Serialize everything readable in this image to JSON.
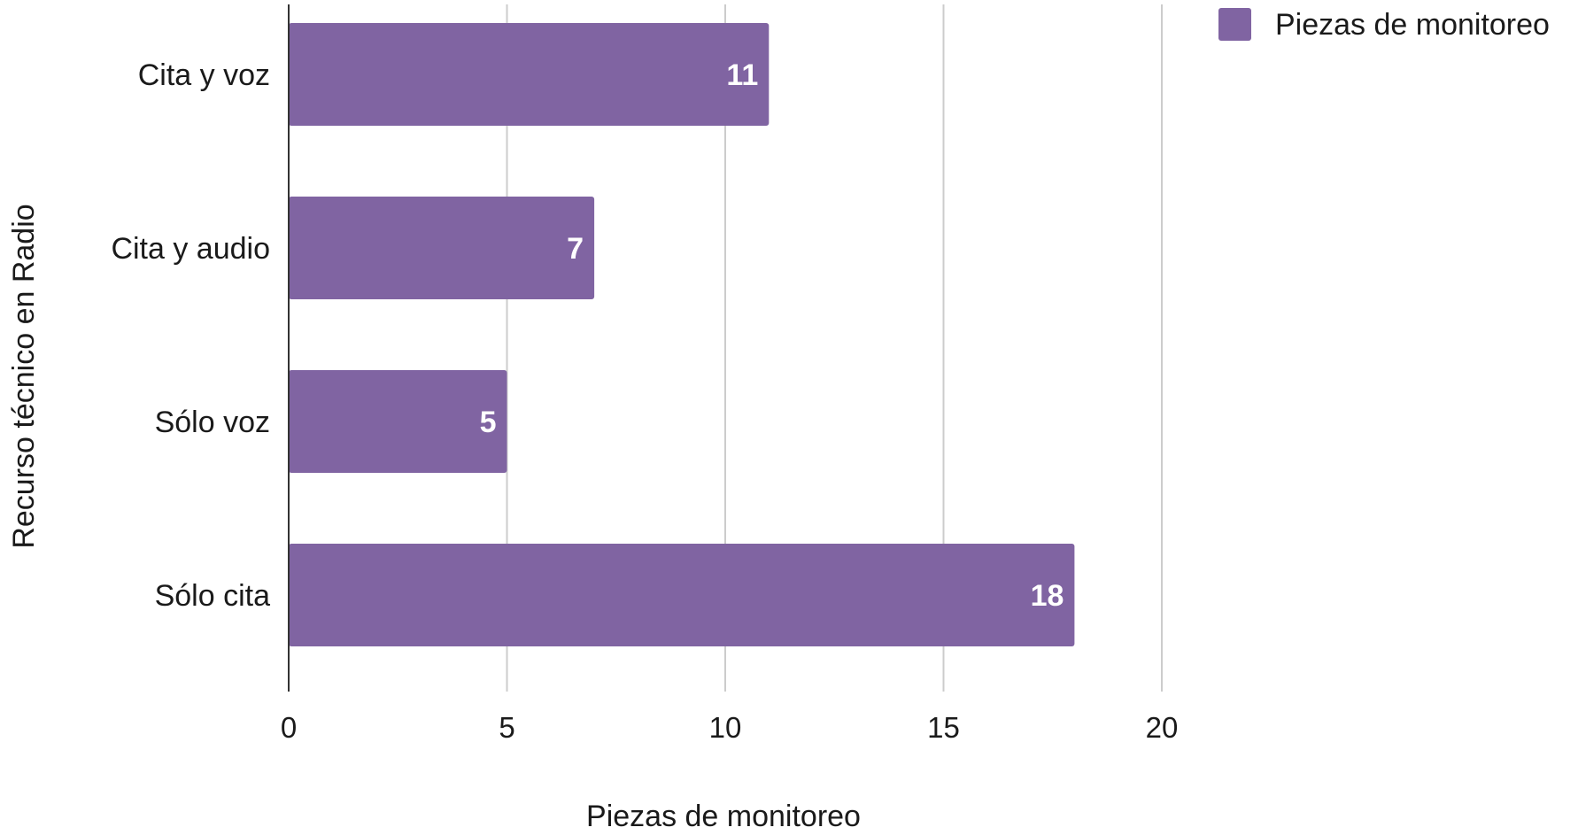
{
  "chart_data": {
    "type": "bar",
    "orientation": "horizontal",
    "categories": [
      "Cita y voz",
      "Cita y audio",
      "Sólo voz",
      "Sólo cita"
    ],
    "series": [
      {
        "name": "Piezas de monitoreo",
        "values": [
          11,
          7,
          5,
          18
        ],
        "color": "#8064a2"
      }
    ],
    "xlabel": "Piezas de monitoreo",
    "ylabel": "Recurso técnico en Radio",
    "xlim": [
      0,
      20
    ],
    "xticks": [
      "0",
      "5",
      "10",
      "15",
      "20"
    ],
    "grid": true,
    "legend_position": "top-right",
    "data_labels": [
      "11",
      "7",
      "5",
      "18"
    ]
  }
}
